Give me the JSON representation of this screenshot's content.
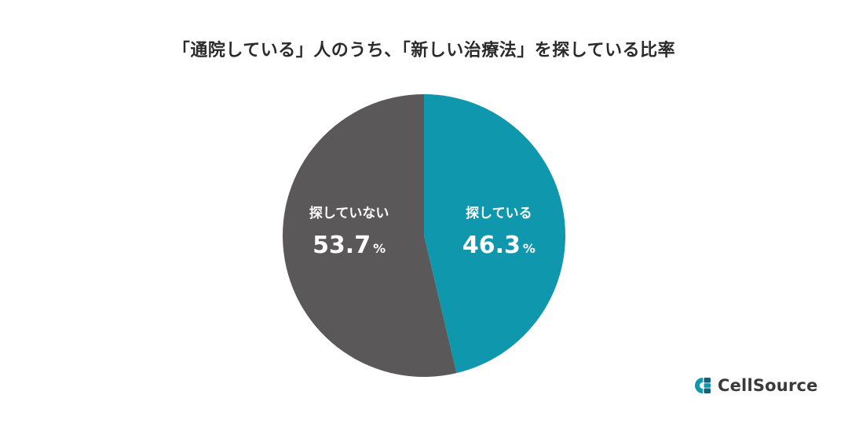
{
  "chart_data": {
    "type": "pie",
    "title": "「通院している」人のうち、「新しい治療法」を探している比率",
    "slices": [
      {
        "label": "探している",
        "value": 46.3,
        "color": "#0f97ad"
      },
      {
        "label": "探していない",
        "value": 53.7,
        "color": "#5a5859"
      }
    ],
    "unit": "%"
  },
  "brand": {
    "name": "CellSource",
    "icon": "cellsource-logo-icon",
    "colors": [
      "#0f97ad",
      "#12637a"
    ]
  }
}
